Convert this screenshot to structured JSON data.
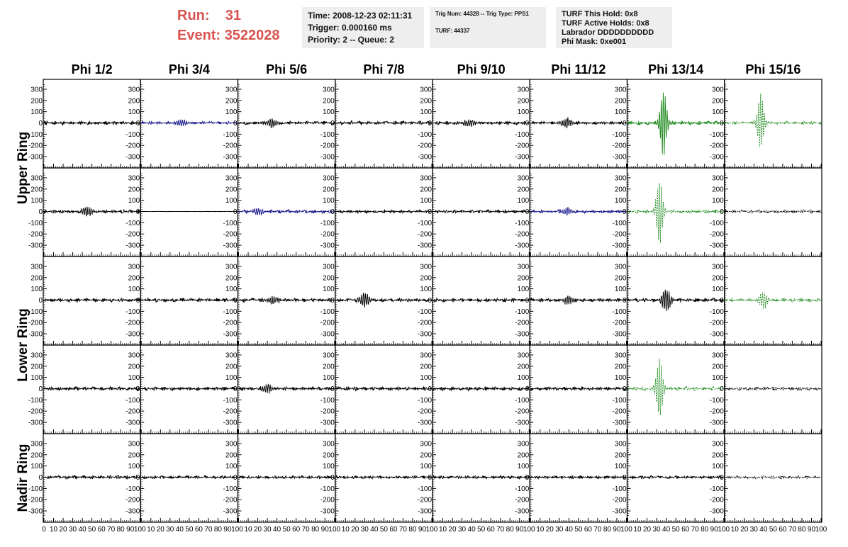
{
  "header": {
    "run_label": "Run:",
    "run_value": "31",
    "event_label": "Event:",
    "event_value": "3522028",
    "time_box": [
      "Time: 2008-12-23 02:11:31",
      "Trigger: 0.000160 ms",
      "Priority: 2 -- Queue: 2"
    ],
    "trig_box": [
      "Trig Num: 44328 -- Trig Type: PPS1",
      "",
      "TURF: 44337"
    ],
    "turf_box": [
      "TURF This Hold: 0x8",
      "TURF Active Holds: 0x8",
      "Labrador DDDDDDDDDD",
      "Phi Mask: 0xe001"
    ]
  },
  "colors": {
    "title_red": "#d9534f",
    "black_trace": "#000000",
    "blue_trace": "#1a1a8c",
    "green_trace": "#1e8a1e"
  },
  "chart_data": {
    "type": "line",
    "columns": [
      "Phi 1/2",
      "Phi 3/4",
      "Phi 5/6",
      "Phi 7/8",
      "Phi 9/10",
      "Phi 11/12",
      "Phi 13/14",
      "Phi 15/16"
    ],
    "ring_labels": [
      {
        "text": "Upper Ring",
        "rows": [
          0,
          1
        ]
      },
      {
        "text": "Lower Ring",
        "rows": [
          2,
          3
        ]
      },
      {
        "text": "Nadir Ring",
        "rows": [
          4
        ]
      }
    ],
    "xlim": [
      0,
      100
    ],
    "ylim": [
      -350,
      350
    ],
    "x_ticks": [
      0,
      10,
      20,
      30,
      40,
      50,
      60,
      70,
      80,
      90,
      100
    ],
    "y_ticks": [
      300,
      200,
      100,
      0,
      -100,
      -200,
      -300
    ],
    "grid": false,
    "rows": [
      [
        {
          "color": "black",
          "dashed": false,
          "noise": 18,
          "pulse": null,
          "empty": false
        },
        {
          "color": "blue",
          "dashed": false,
          "noise": 15,
          "pulse": {
            "center": 42,
            "amp": 30,
            "width": 6
          },
          "empty": false
        },
        {
          "color": "black",
          "dashed": false,
          "noise": 18,
          "pulse": {
            "center": 35,
            "amp": 35,
            "width": 6
          },
          "empty": false
        },
        {
          "color": "black",
          "dashed": false,
          "noise": 18,
          "pulse": null,
          "empty": false
        },
        {
          "color": "black",
          "dashed": false,
          "noise": 18,
          "pulse": {
            "center": 38,
            "amp": 35,
            "width": 6
          },
          "empty": false
        },
        {
          "color": "black",
          "dashed": false,
          "noise": 15,
          "pulse": {
            "center": 38,
            "amp": 45,
            "width": 6
          },
          "empty": false
        },
        {
          "color": "green",
          "dashed": false,
          "noise": 18,
          "pulse": {
            "center": 37,
            "amp": 320,
            "width": 4
          },
          "empty": false
        },
        {
          "color": "green",
          "dashed": true,
          "noise": 15,
          "pulse": {
            "center": 37,
            "amp": 260,
            "width": 4
          },
          "empty": false
        }
      ],
      [
        {
          "color": "black",
          "dashed": false,
          "noise": 18,
          "pulse": {
            "center": 45,
            "amp": 50,
            "width": 6
          },
          "empty": false
        },
        {
          "color": "black",
          "dashed": false,
          "noise": 2,
          "pulse": null,
          "empty": false
        },
        {
          "color": "blue",
          "dashed": false,
          "noise": 18,
          "pulse": {
            "center": 20,
            "amp": 35,
            "width": 5
          },
          "empty": false
        },
        {
          "color": "black",
          "dashed": false,
          "noise": 15,
          "pulse": null,
          "empty": false
        },
        {
          "color": "black",
          "dashed": false,
          "noise": 15,
          "pulse": null,
          "empty": false
        },
        {
          "color": "blue",
          "dashed": false,
          "noise": 15,
          "pulse": {
            "center": 38,
            "amp": 30,
            "width": 6
          },
          "empty": false
        },
        {
          "color": "green",
          "dashed": true,
          "noise": 18,
          "pulse": {
            "center": 33,
            "amp": 300,
            "width": 4
          },
          "empty": false
        },
        {
          "color": "black",
          "dashed": true,
          "noise": 18,
          "pulse": null,
          "empty": false
        }
      ],
      [
        {
          "color": "black",
          "dashed": false,
          "noise": 18,
          "pulse": null,
          "empty": false
        },
        {
          "color": "black",
          "dashed": false,
          "noise": 18,
          "pulse": null,
          "empty": false
        },
        {
          "color": "black",
          "dashed": false,
          "noise": 18,
          "pulse": {
            "center": 35,
            "amp": 40,
            "width": 6
          },
          "empty": false
        },
        {
          "color": "black",
          "dashed": false,
          "noise": 18,
          "pulse": {
            "center": 30,
            "amp": 80,
            "width": 5
          },
          "empty": false
        },
        {
          "color": "black",
          "dashed": false,
          "noise": 18,
          "pulse": null,
          "empty": false
        },
        {
          "color": "black",
          "dashed": false,
          "noise": 18,
          "pulse": {
            "center": 40,
            "amp": 40,
            "width": 6
          },
          "empty": false
        },
        {
          "color": "black",
          "dashed": false,
          "noise": 20,
          "pulse": {
            "center": 40,
            "amp": 110,
            "width": 5
          },
          "empty": false
        },
        {
          "color": "green",
          "dashed": true,
          "noise": 18,
          "pulse": {
            "center": 40,
            "amp": 80,
            "width": 5
          },
          "empty": false
        }
      ],
      [
        {
          "color": "black",
          "dashed": false,
          "noise": 18,
          "pulse": null,
          "empty": false
        },
        {
          "color": "black",
          "dashed": false,
          "noise": 18,
          "pulse": null,
          "empty": false
        },
        {
          "color": "black",
          "dashed": false,
          "noise": 18,
          "pulse": {
            "center": 30,
            "amp": 40,
            "width": 6
          },
          "empty": false
        },
        {
          "color": "black",
          "dashed": false,
          "noise": 18,
          "pulse": null,
          "empty": false
        },
        {
          "color": "black",
          "dashed": false,
          "noise": 18,
          "pulse": null,
          "empty": false
        },
        {
          "color": "black",
          "dashed": false,
          "noise": 18,
          "pulse": null,
          "empty": false
        },
        {
          "color": "green",
          "dashed": true,
          "noise": 18,
          "pulse": {
            "center": 33,
            "amp": 290,
            "width": 4
          },
          "empty": false
        },
        {
          "color": "black",
          "dashed": true,
          "noise": 18,
          "pulse": null,
          "empty": false
        }
      ],
      [
        {
          "color": "black",
          "dashed": false,
          "noise": 18,
          "pulse": null,
          "empty": false
        },
        {
          "color": "black",
          "dashed": false,
          "noise": 15,
          "pulse": null,
          "empty": false
        },
        {
          "color": "black",
          "dashed": false,
          "noise": 15,
          "pulse": null,
          "empty": false
        },
        {
          "color": "black",
          "dashed": false,
          "noise": 15,
          "pulse": null,
          "empty": false
        },
        {
          "color": "black",
          "dashed": false,
          "noise": 15,
          "pulse": null,
          "empty": false
        },
        {
          "color": "black",
          "dashed": false,
          "noise": 15,
          "pulse": null,
          "empty": false
        },
        {
          "color": "black",
          "dashed": false,
          "noise": 15,
          "pulse": null,
          "empty": false
        },
        {
          "color": "black",
          "dashed": true,
          "noise": 15,
          "pulse": null,
          "empty": false
        }
      ]
    ]
  }
}
